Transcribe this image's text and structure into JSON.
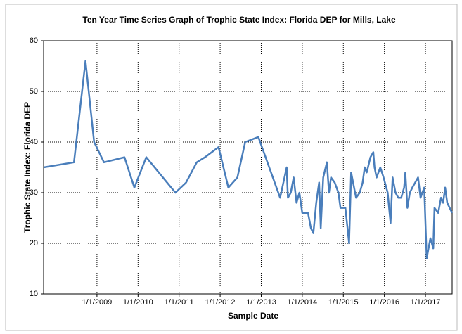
{
  "chart_data": {
    "type": "line",
    "title": "Ten Year Time Series Graph of Trophic State Index: Florida DEP for Mills, Lake",
    "x_label": "Sample Date",
    "y_label": "Trophic State Index: Florida DEP",
    "x": [
      2007.7,
      2008.44,
      2008.72,
      2008.93,
      2009.17,
      2009.67,
      2009.91,
      2010.2,
      2010.91,
      2011.17,
      2011.43,
      2011.63,
      2011.96,
      2012.2,
      2012.42,
      2012.61,
      2012.93,
      2013.46,
      2013.62,
      2013.65,
      2013.72,
      2013.79,
      2013.86,
      2013.93,
      2014.0,
      2014.14,
      2014.21,
      2014.27,
      2014.34,
      2014.41,
      2014.45,
      2014.51,
      2014.6,
      2014.65,
      2014.7,
      2014.79,
      2014.88,
      2014.93,
      2015.05,
      2015.14,
      2015.19,
      2015.31,
      2015.4,
      2015.47,
      2015.52,
      2015.57,
      2015.66,
      2015.73,
      2015.76,
      2015.81,
      2015.9,
      2015.98,
      2016.08,
      2016.15,
      2016.2,
      2016.27,
      2016.34,
      2016.41,
      2016.48,
      2016.51,
      2016.56,
      2016.62,
      2016.68,
      2016.75,
      2016.82,
      2016.88,
      2016.97,
      2017.03,
      2017.12,
      2017.19,
      2017.22,
      2017.31,
      2017.38,
      2017.43,
      2017.48,
      2017.53,
      2017.65
    ],
    "series": [
      {
        "name": "Trophic State Index",
        "color": "#4a7ebb",
        "values": [
          35,
          36,
          56,
          40,
          36,
          37,
          31,
          37,
          30,
          32,
          36,
          37,
          39,
          31,
          33,
          40,
          41,
          29,
          35,
          29,
          30,
          33,
          28,
          30,
          26,
          26,
          23,
          22,
          28,
          32,
          23,
          33,
          36,
          30,
          33,
          32,
          30,
          27,
          27,
          20,
          34,
          29,
          30,
          32,
          35,
          34,
          37,
          38,
          35,
          33,
          35,
          33,
          30,
          24,
          33,
          30,
          29,
          29,
          31,
          34,
          27,
          30,
          31,
          32,
          33,
          29,
          31,
          17,
          21,
          19,
          27,
          26,
          29,
          28,
          31,
          28,
          26
        ]
      }
    ],
    "xlim": [
      2007.7,
      2017.65
    ],
    "xticks": [
      {
        "value": 2009,
        "label": "1/1/2009"
      },
      {
        "value": 2010,
        "label": "1/1/2010"
      },
      {
        "value": 2011,
        "label": "1/1/2011"
      },
      {
        "value": 2012,
        "label": "1/1/2012"
      },
      {
        "value": 2013,
        "label": "1/1/2013"
      },
      {
        "value": 2014,
        "label": "1/1/2014"
      },
      {
        "value": 2015,
        "label": "1/1/2015"
      },
      {
        "value": 2016,
        "label": "1/1/2016"
      },
      {
        "value": 2017,
        "label": "1/1/2017"
      }
    ],
    "ylim": [
      10,
      60
    ],
    "yticks": [
      10,
      20,
      30,
      40,
      50,
      60
    ],
    "grid": true
  }
}
